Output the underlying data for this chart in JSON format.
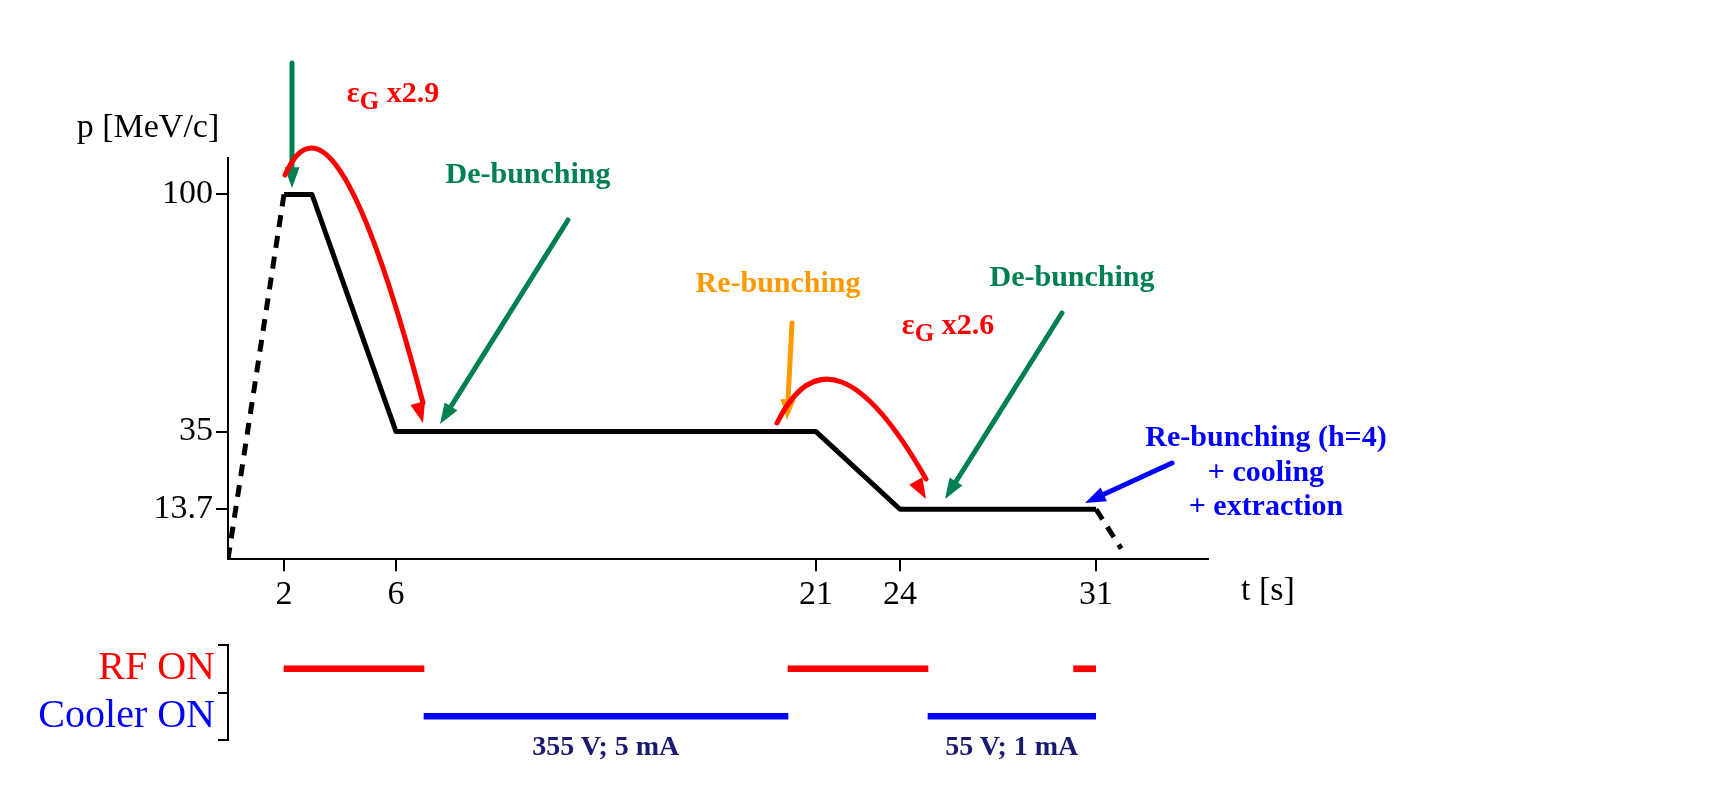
{
  "chart_data": [
    {
      "type": "line",
      "xlabel": "t [s]",
      "ylabel": "p [MeV/c]",
      "xlim": [
        0,
        35
      ],
      "xticks": [
        2,
        6,
        21,
        24,
        31
      ],
      "ylim": [
        0,
        110
      ],
      "yticks": [
        13.7,
        35,
        100
      ],
      "grid": false,
      "legend": false,
      "marker": "none",
      "series": [
        {
          "color": "#000000",
          "line_style": "dashed",
          "x": [
            0,
            2
          ],
          "values": [
            0,
            100
          ]
        },
        {
          "color": "#000000",
          "line_style": "solid",
          "x": [
            2,
            3,
            6,
            21,
            24,
            31
          ],
          "values": [
            100,
            100,
            35,
            35,
            13.7,
            13.7
          ]
        },
        {
          "color": "#000000",
          "line_style": "dashed",
          "x": [
            31,
            31.9
          ],
          "values": [
            13.7,
            2.9
          ]
        }
      ],
      "annotations": [
        "ε$_{G}$ x2.9",
        "De-bunching",
        "Re-bunching",
        "ε$_{G}$ x2.6",
        "De-bunching",
        "Re-bunching (h=4)\n+ cooling\n+ extraction"
      ]
    },
    {
      "type": "bar",
      "orientation": "horizontal",
      "categories": [
        "RF ON",
        "Cooler ON"
      ],
      "xlim": [
        0,
        31
      ],
      "xticks": [
        2,
        6,
        21,
        24,
        31
      ],
      "tick_labels": "y",
      "legend": false,
      "series": [
        {
          "color": "#ff0000",
          "values": [
            5,
            null
          ],
          "base": [
            2,
            null
          ]
        },
        {
          "color": "#ff0000",
          "values": [
            5,
            null
          ],
          "base": [
            20,
            null
          ]
        },
        {
          "color": "#ff0000",
          "values": [
            0.8,
            null
          ],
          "base": [
            30.2,
            null
          ]
        },
        {
          "color": "#0000ff",
          "values": [
            null,
            13
          ],
          "base": [
            null,
            7
          ]
        },
        {
          "color": "#0000ff",
          "values": [
            null,
            6
          ],
          "base": [
            null,
            25
          ]
        }
      ],
      "annotations": [
        "355 V; 5 mA",
        "55 V; 1 mA"
      ]
    }
  ]
}
